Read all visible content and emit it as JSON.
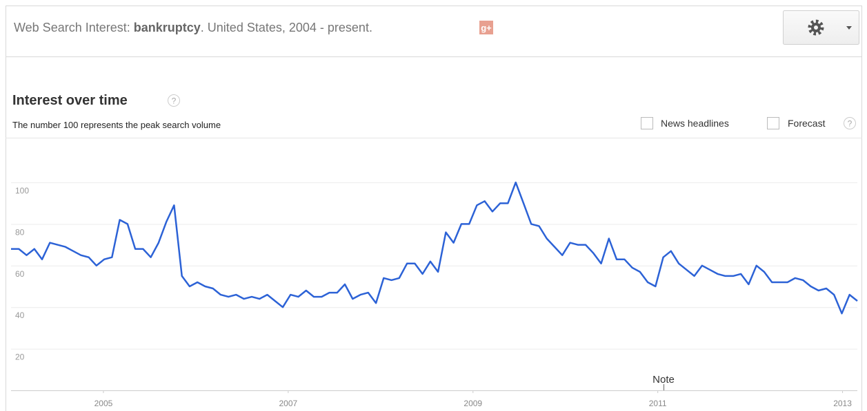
{
  "header": {
    "prefix": "Web Search Interest: ",
    "term": "bankruptcy",
    "suffix": ". United States, 2004 - present.",
    "share_icon": "g+"
  },
  "help_icon": "?",
  "options": {
    "news": "News headlines",
    "forecast": "Forecast"
  },
  "chart_data": {
    "type": "line",
    "title": "Interest over time",
    "subtitle": "The number 100 represents the peak search volume",
    "annotation": "Note",
    "color": "#2c62d6",
    "grid": true,
    "values": [
      68,
      68,
      65,
      68,
      63,
      71,
      70,
      69,
      67,
      65,
      64,
      60,
      63,
      64,
      82,
      80,
      68,
      68,
      64,
      71,
      81,
      89,
      55,
      50,
      52,
      50,
      49,
      46,
      45,
      46,
      44,
      45,
      44,
      46,
      43,
      40,
      46,
      45,
      48,
      45,
      45,
      47,
      47,
      51,
      44,
      46,
      47,
      42,
      54,
      53,
      54,
      61,
      61,
      56,
      62,
      57,
      76,
      71,
      80,
      80,
      89,
      91,
      86,
      90,
      90,
      100,
      90,
      80,
      79,
      73,
      69,
      65,
      71,
      70,
      70,
      66,
      61,
      73,
      63,
      63,
      59,
      57,
      52,
      50,
      64,
      67,
      61,
      58,
      55,
      60,
      58,
      56,
      55,
      55,
      56,
      51,
      60,
      57,
      52,
      52,
      52,
      54,
      53,
      50,
      48,
      49,
      46,
      37,
      46,
      43
    ],
    "xlim": [
      2004,
      2013.16
    ],
    "xticks": [
      2005,
      2007,
      2009,
      2011,
      2013
    ],
    "ylim": [
      0,
      100
    ],
    "yticks": [
      20,
      40,
      60,
      80,
      100
    ]
  }
}
